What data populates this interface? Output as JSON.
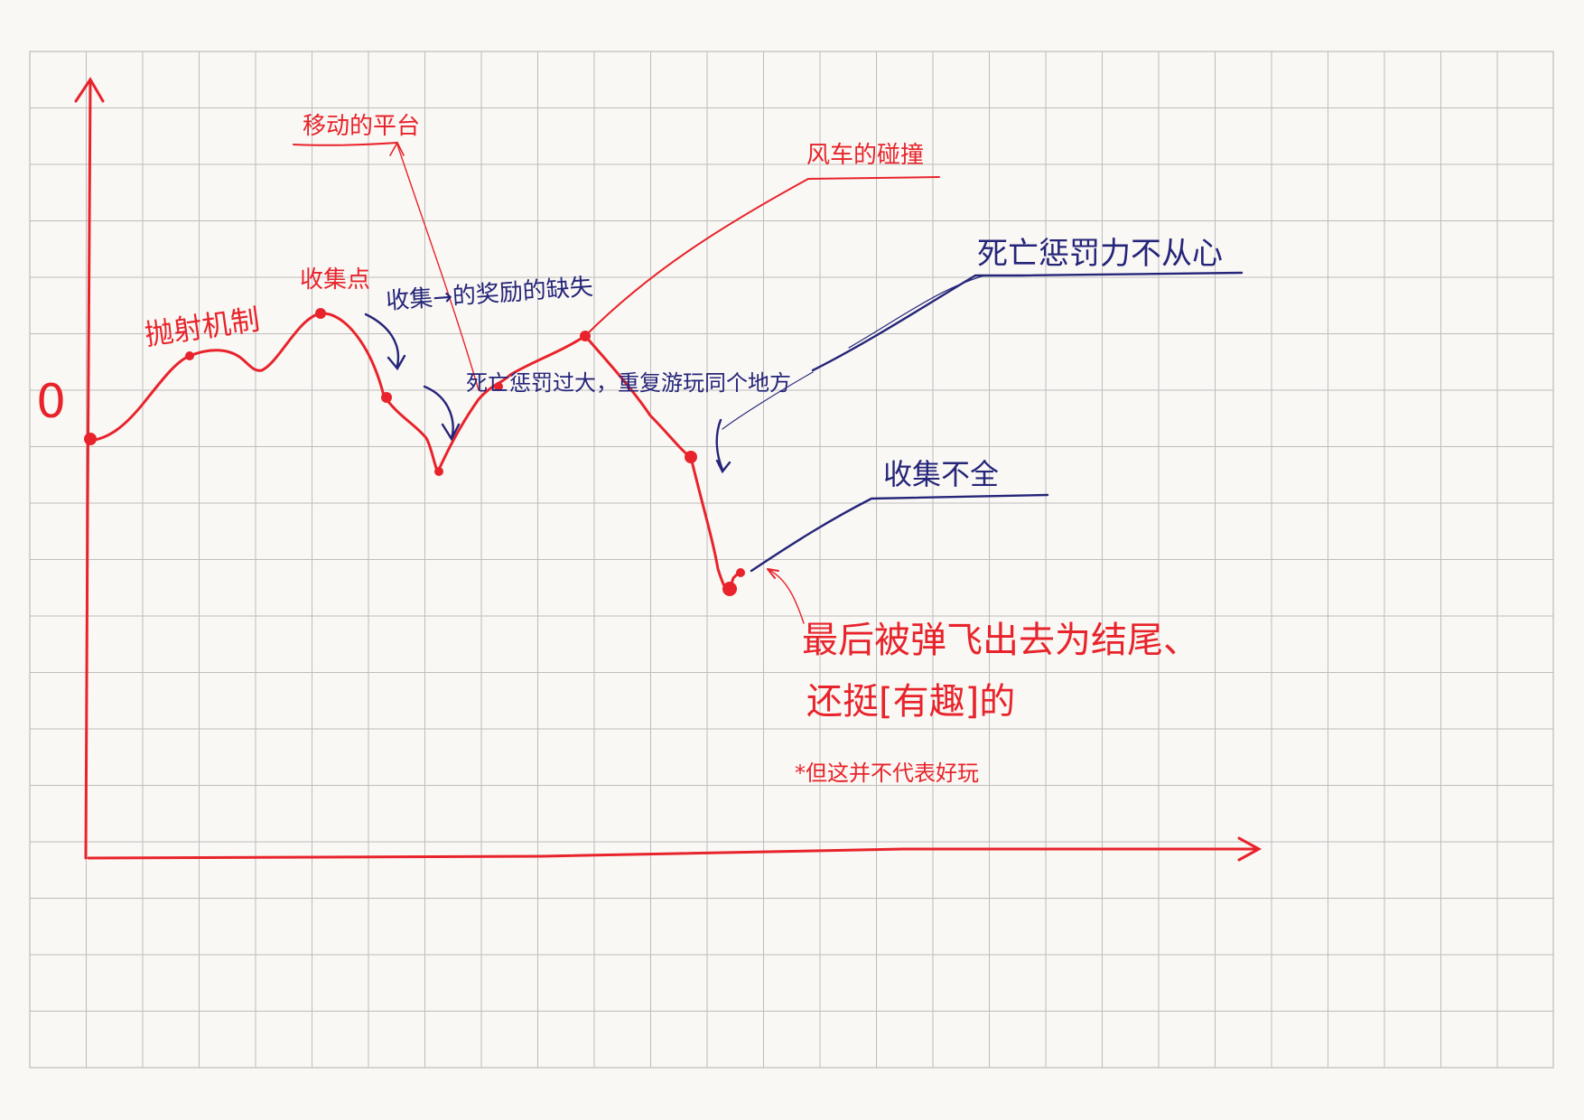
{
  "colors": {
    "paper": "#faf8f4",
    "grid": "#bdbdbd",
    "curve": "#e8232b",
    "note": "#25257a"
  },
  "origin_label": "0",
  "labels": {
    "launch_mechanism": "抛射机制",
    "collect_point": "收集点",
    "moving_platform": "移动的平台",
    "collect_reward": "收集→的奖励的缺失",
    "death_penalty": "死亡惩罚过大，重复游玩同个地方",
    "windmill_collision": "风车的碰撞",
    "death_penalty_weak": "死亡惩罚力不从心",
    "collect_incomplete": "收集不全",
    "ending_line1": "最后被弹飞出去为结尾、",
    "ending_line2": "还挺[有趣]的",
    "footnote": "*但这并不代表好玩"
  }
}
